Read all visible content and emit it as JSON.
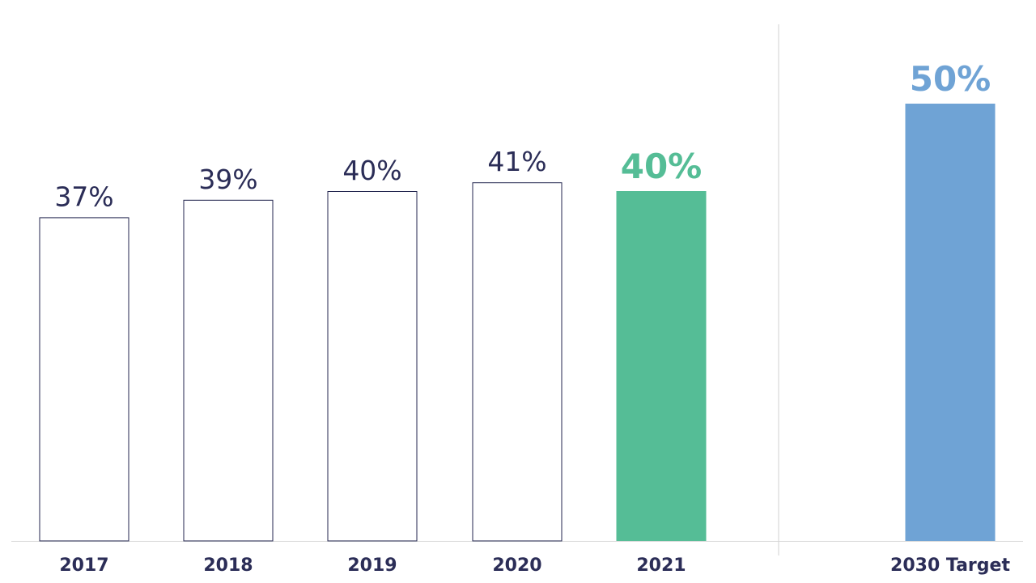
{
  "chart_data": {
    "type": "bar",
    "categories": [
      "2017",
      "2018",
      "2019",
      "2020",
      "2021",
      "2030 Target"
    ],
    "values": [
      37,
      39,
      40,
      41,
      40,
      50
    ],
    "data_labels": [
      "37%",
      "39%",
      "40%",
      "41%",
      "40%",
      "50%"
    ],
    "title": "",
    "xlabel": "",
    "ylabel": "",
    "ylim": [
      0,
      58
    ],
    "grid": false,
    "legend": "none",
    "bar_styles": [
      "outline",
      "outline",
      "outline",
      "outline",
      "filled",
      "filled"
    ],
    "colors": {
      "outline_stroke": "#23264f",
      "label_default": "#2b2d57",
      "highlight_2021": "#55bd96",
      "target_2030": "#6fa3d5",
      "axis": "#d6d6d6",
      "divider": "#d0d0d0"
    }
  }
}
